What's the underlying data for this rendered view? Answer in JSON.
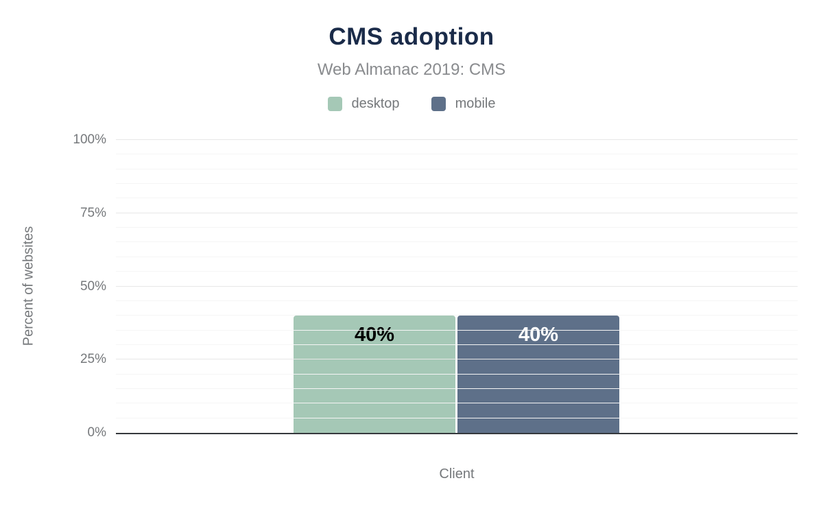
{
  "chart_data": {
    "type": "bar",
    "title": "CMS adoption",
    "subtitle": "Web Almanac 2019: CMS",
    "xlabel": "Client",
    "ylabel": "Percent of websites",
    "ylim": [
      0,
      100
    ],
    "yticks": [
      {
        "value": 0,
        "label": "0%"
      },
      {
        "value": 25,
        "label": "25%"
      },
      {
        "value": 50,
        "label": "50%"
      },
      {
        "value": 75,
        "label": "75%"
      },
      {
        "value": 100,
        "label": "100%"
      }
    ],
    "minor_grid_step": 5,
    "major_grid_step": 25,
    "grid": "on",
    "legend_position": "top",
    "categories": [
      "Client"
    ],
    "series": [
      {
        "name": "desktop",
        "values": [
          40
        ],
        "data_label": "40%",
        "color": "#a5c8b6",
        "label_color": "#000000"
      },
      {
        "name": "mobile",
        "values": [
          40
        ],
        "data_label": "40%",
        "color": "#5e7089",
        "label_color": "#ffffff"
      }
    ]
  },
  "colors": {
    "title_text": "#1a2b49",
    "subtitle_text": "#898b8e",
    "axis_text": "#75787b",
    "axis_line": "#35383c",
    "grid_major": "#e7e7e7",
    "grid_minor": "#f5f5f5"
  }
}
